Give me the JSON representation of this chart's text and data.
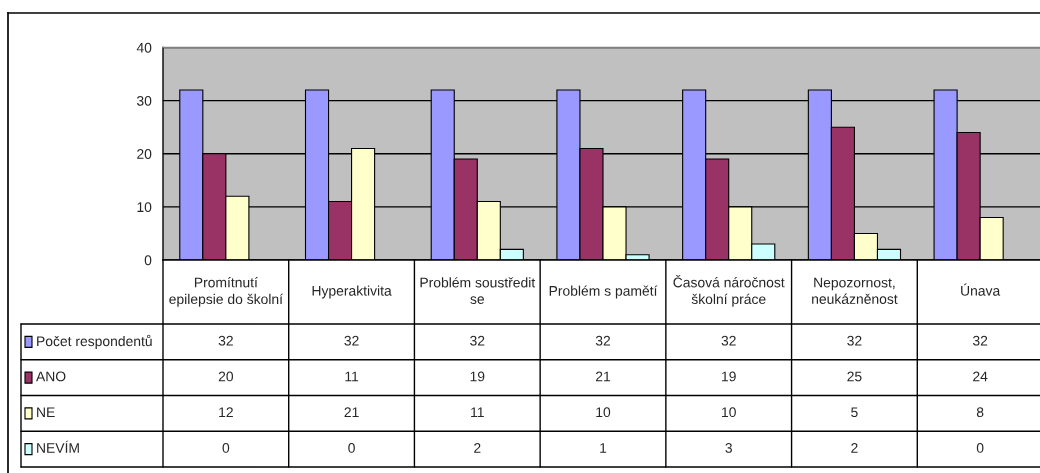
{
  "chart_data": {
    "type": "bar",
    "categories": [
      "Promítnutí epilepsie do školní",
      "Hyperaktivita",
      "Problém soustředit se",
      "Problém s pamětí",
      "Časová náročnost školní práce",
      "Nepozornost, neukázněnost",
      "Únava"
    ],
    "series": [
      {
        "name": "Počet respondentů",
        "color": "#9999ff",
        "values": [
          32,
          32,
          32,
          32,
          32,
          32,
          32
        ]
      },
      {
        "name": "ANO",
        "color": "#993366",
        "values": [
          20,
          11,
          19,
          21,
          19,
          25,
          24
        ]
      },
      {
        "name": "NE",
        "color": "#ffffcc",
        "values": [
          12,
          21,
          11,
          10,
          10,
          5,
          8
        ]
      },
      {
        "name": "NEVÍM",
        "color": "#ccffff",
        "values": [
          0,
          0,
          2,
          1,
          3,
          2,
          0
        ]
      }
    ],
    "ylim": [
      0,
      40
    ],
    "yticks": [
      0,
      10,
      20,
      30,
      40
    ],
    "grid": "y",
    "legend": "bottom left",
    "data_labels": true
  }
}
